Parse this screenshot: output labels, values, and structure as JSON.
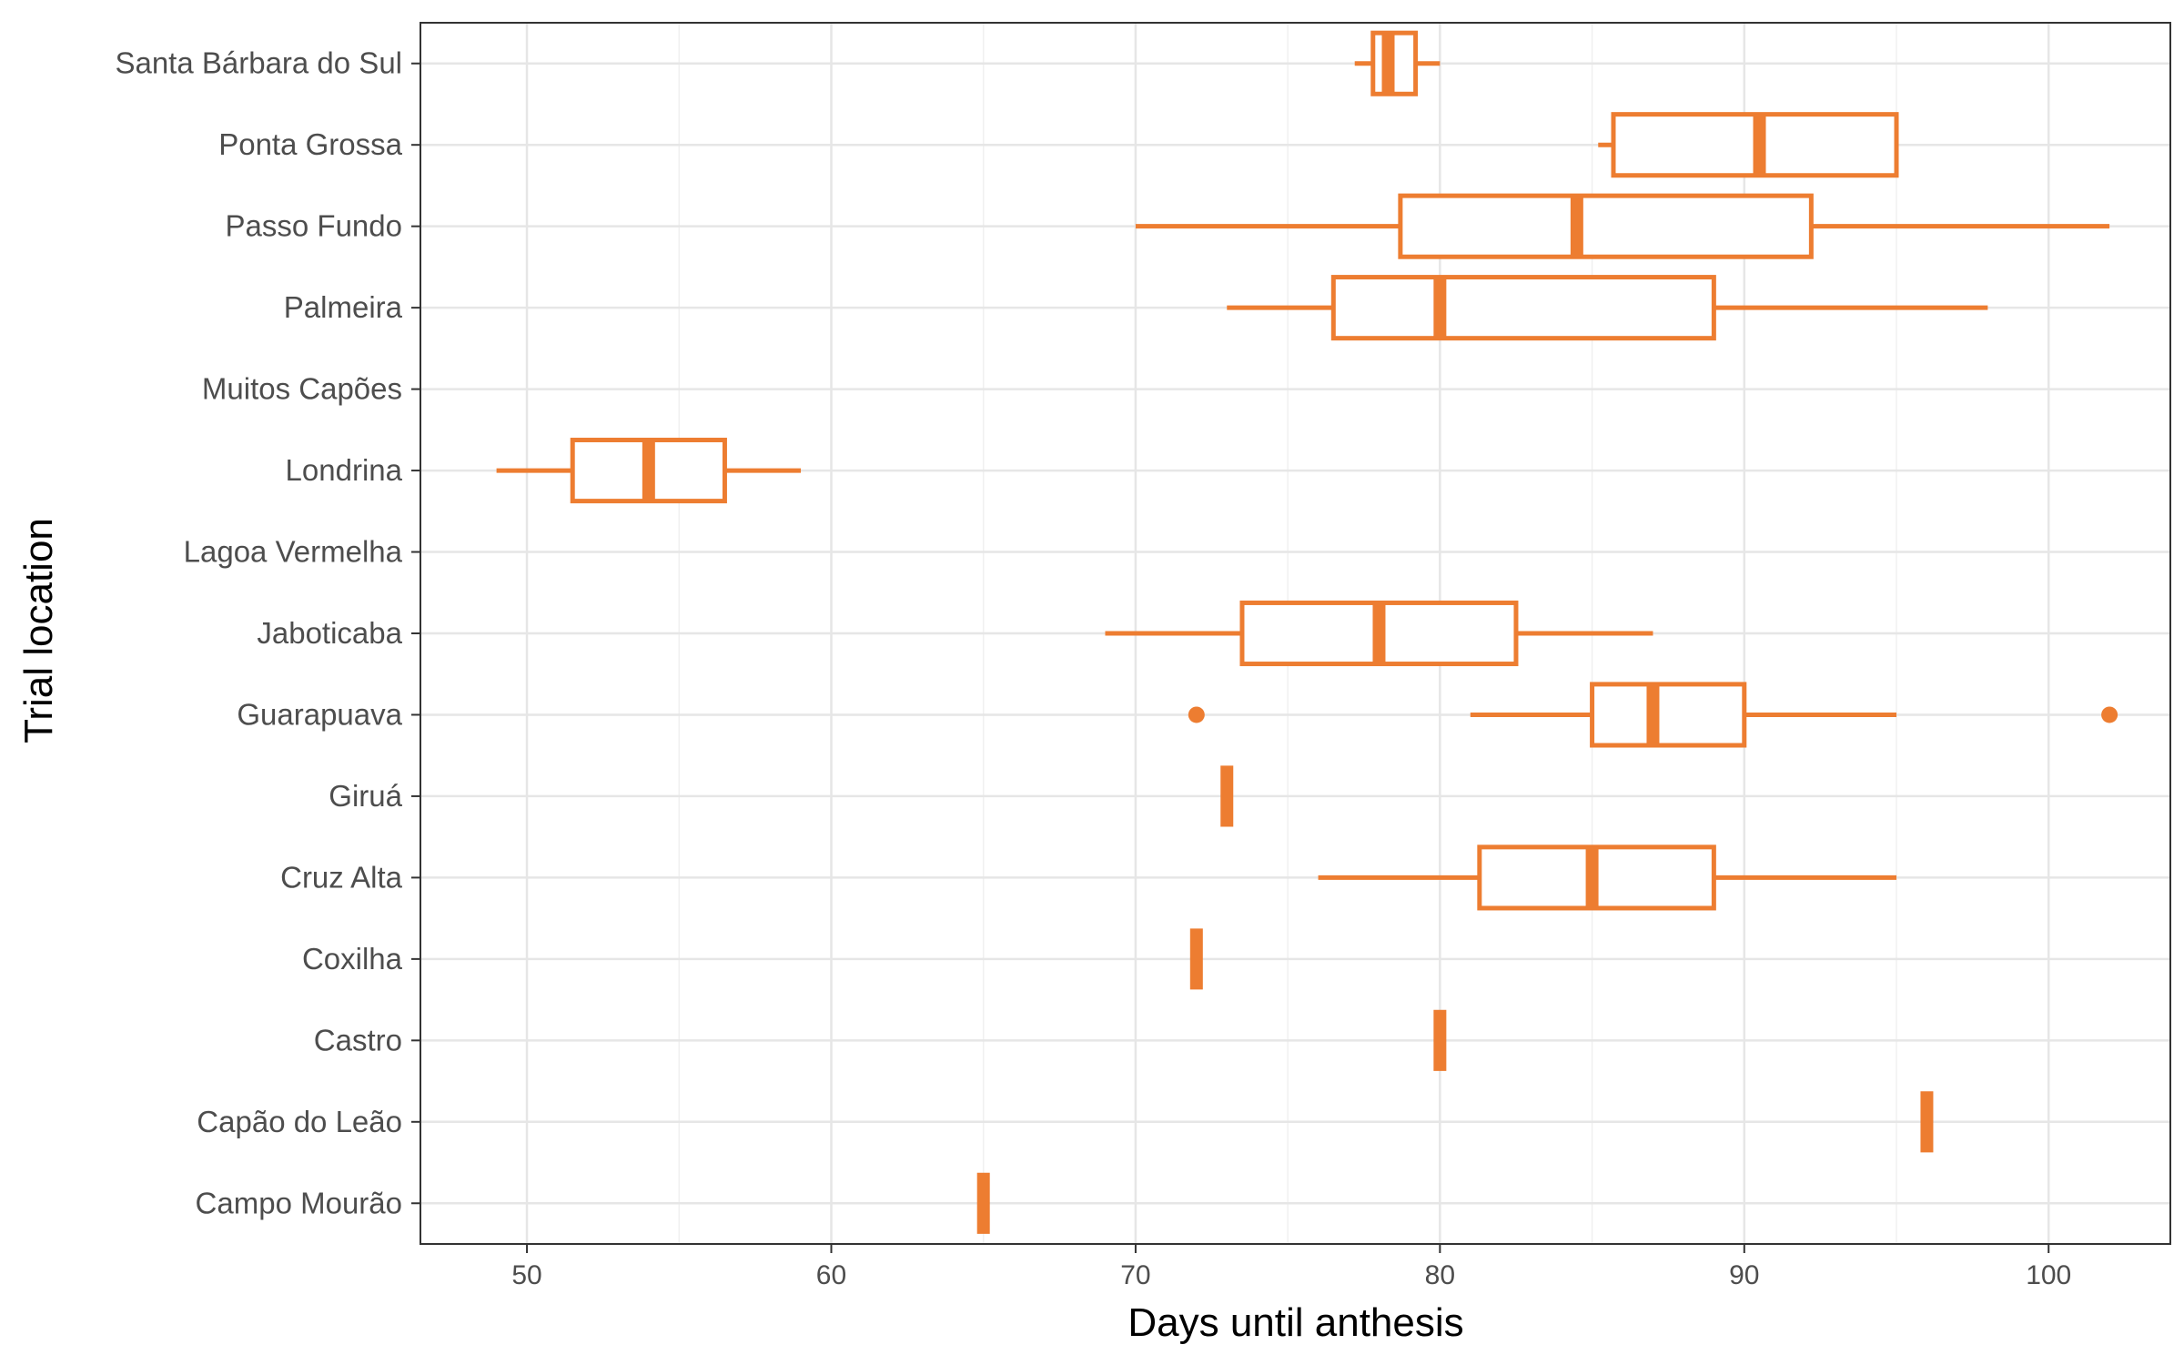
{
  "chart_data": {
    "type": "boxplot",
    "orientation": "horizontal",
    "xlabel": "Days until anthesis",
    "ylabel": "Trial location",
    "xlim": [
      46.5,
      104
    ],
    "x_ticks": [
      50,
      60,
      70,
      80,
      90,
      100
    ],
    "x_tick_labels": [
      "50",
      "60",
      "70",
      "80",
      "90",
      "100"
    ],
    "grid": true,
    "legend": "none",
    "color": "#ED7D31",
    "categories": [
      "Santa Bárbara do Sul",
      "Ponta Grossa",
      "Passo Fundo",
      "Palmeira",
      "Muitos Capões",
      "Londrina",
      "Lagoa Vermelha",
      "Jaboticaba",
      "Guarapuava",
      "Giruá",
      "Cruz Alta",
      "Coxilha",
      "Castro",
      "Capão do Leão",
      "Campo Mourão"
    ],
    "boxes": [
      {
        "category": "Santa Bárbara do Sul",
        "whisker_low": 77.2,
        "q1": 77.8,
        "median": 78.3,
        "q3": 79.2,
        "whisker_high": 80,
        "outliers": []
      },
      {
        "category": "Ponta Grossa",
        "whisker_low": 85.2,
        "q1": 85.7,
        "median": 90.5,
        "q3": 95,
        "whisker_high": 95,
        "outliers": []
      },
      {
        "category": "Passo Fundo",
        "whisker_low": 70,
        "q1": 78.7,
        "median": 84.5,
        "q3": 92.2,
        "whisker_high": 102,
        "outliers": []
      },
      {
        "category": "Palmeira",
        "whisker_low": 73,
        "q1": 76.5,
        "median": 80,
        "q3": 89,
        "whisker_high": 98,
        "outliers": []
      },
      {
        "category": "Muitos Capões",
        "whisker_low": null,
        "q1": null,
        "median": null,
        "q3": null,
        "whisker_high": null,
        "outliers": []
      },
      {
        "category": "Londrina",
        "whisker_low": 49,
        "q1": 51.5,
        "median": 54,
        "q3": 56.5,
        "whisker_high": 59,
        "outliers": []
      },
      {
        "category": "Lagoa Vermelha",
        "whisker_low": null,
        "q1": null,
        "median": null,
        "q3": null,
        "whisker_high": null,
        "outliers": []
      },
      {
        "category": "Jaboticaba",
        "whisker_low": 69,
        "q1": 73.5,
        "median": 78,
        "q3": 82.5,
        "whisker_high": 87,
        "outliers": []
      },
      {
        "category": "Guarapuava",
        "whisker_low": 81,
        "q1": 85,
        "median": 87,
        "q3": 90,
        "whisker_high": 95,
        "outliers": [
          72,
          102
        ]
      },
      {
        "category": "Giruá",
        "whisker_low": 73,
        "q1": 73,
        "median": 73,
        "q3": 73,
        "whisker_high": 73,
        "outliers": []
      },
      {
        "category": "Cruz Alta",
        "whisker_low": 76,
        "q1": 81.3,
        "median": 85,
        "q3": 89,
        "whisker_high": 95,
        "outliers": []
      },
      {
        "category": "Coxilha",
        "whisker_low": 72,
        "q1": 72,
        "median": 72,
        "q3": 72,
        "whisker_high": 72,
        "outliers": []
      },
      {
        "category": "Castro",
        "whisker_low": 80,
        "q1": 80,
        "median": 80,
        "q3": 80,
        "whisker_high": 80,
        "outliers": []
      },
      {
        "category": "Capão do Leão",
        "whisker_low": 96,
        "q1": 96,
        "median": 96,
        "q3": 96,
        "whisker_high": 96,
        "outliers": []
      },
      {
        "category": "Campo Mourão",
        "whisker_low": 65,
        "q1": 65,
        "median": 65,
        "q3": 65,
        "whisker_high": 65,
        "outliers": []
      }
    ]
  }
}
